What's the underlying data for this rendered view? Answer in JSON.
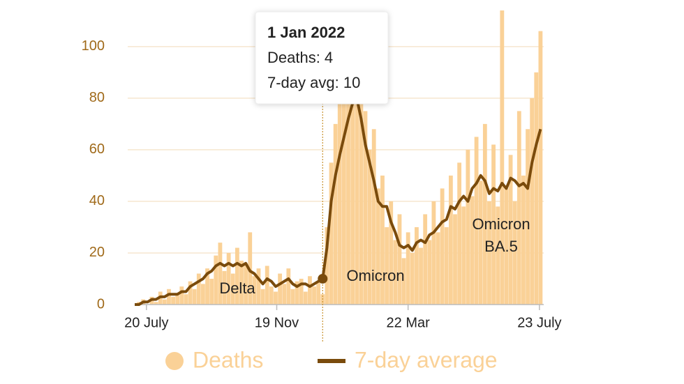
{
  "chart_data": {
    "type": "bar-line",
    "x": [
      -11,
      -7,
      -3,
      1,
      5,
      9,
      13,
      17,
      21,
      25,
      29,
      33,
      37,
      41,
      45,
      49,
      53,
      57,
      61,
      65,
      69,
      73,
      77,
      81,
      85,
      89,
      93,
      97,
      101,
      105,
      109,
      113,
      117,
      121,
      125,
      129,
      133,
      137,
      141,
      145,
      149,
      153,
      157,
      161,
      165,
      169,
      173,
      177,
      181,
      185,
      189,
      193,
      197,
      201,
      205,
      209,
      213,
      217,
      221,
      225,
      229,
      233,
      237,
      241,
      245,
      249,
      253,
      257,
      261,
      265,
      269,
      273,
      277,
      281,
      285,
      289,
      293,
      297,
      301,
      305,
      309,
      313,
      317,
      321,
      325,
      329,
      333,
      337,
      341,
      345,
      349,
      353,
      357,
      361,
      365,
      369
    ],
    "xlim": [
      -11,
      372
    ],
    "xticks": [
      {
        "value": 0,
        "label": "20 July"
      },
      {
        "value": 122,
        "label": "19 Nov"
      },
      {
        "value": 245,
        "label": "22 Mar"
      },
      {
        "value": 368,
        "label": "23 July"
      }
    ],
    "ylim": [
      0,
      114
    ],
    "yticks": [
      0,
      20,
      40,
      60,
      80,
      100
    ],
    "grid": true,
    "series": [
      {
        "name": "Deaths",
        "color": "#fad197",
        "values": [
          0,
          1,
          2,
          0,
          3,
          1,
          5,
          2,
          6,
          3,
          4,
          7,
          4,
          9,
          6,
          12,
          8,
          14,
          10,
          19,
          24,
          13,
          20,
          12,
          22,
          17,
          16,
          28,
          11,
          14,
          6,
          15,
          7,
          5,
          12,
          8,
          14,
          6,
          9,
          10,
          5,
          11,
          7,
          9,
          4,
          30,
          55,
          70,
          95,
          80,
          100,
          85,
          110,
          90,
          75,
          60,
          68,
          45,
          50,
          30,
          40,
          25,
          35,
          18,
          28,
          20,
          30,
          22,
          35,
          25,
          40,
          28,
          45,
          30,
          50,
          35,
          55,
          38,
          60,
          42,
          65,
          48,
          70,
          40,
          62,
          38,
          114,
          45,
          58,
          40,
          75,
          50,
          68,
          80,
          90,
          106
        ]
      },
      {
        "name": "7-day average",
        "color": "#7a4b0c",
        "values": [
          0,
          0,
          1,
          1,
          2,
          2,
          3,
          3,
          4,
          4,
          4,
          5,
          5,
          7,
          8,
          9,
          10,
          12,
          13,
          15,
          16,
          15,
          16,
          15,
          16,
          15,
          16,
          13,
          12,
          10,
          8,
          10,
          9,
          7,
          8,
          9,
          10,
          8,
          7,
          8,
          8,
          7,
          8,
          9,
          10,
          22,
          40,
          50,
          58,
          65,
          72,
          78,
          80,
          72,
          62,
          55,
          48,
          40,
          38,
          38,
          32,
          28,
          23,
          22,
          23,
          21,
          24,
          25,
          24,
          27,
          28,
          30,
          32,
          33,
          38,
          37,
          40,
          42,
          40,
          45,
          47,
          50,
          48,
          43,
          45,
          44,
          47,
          45,
          49,
          48,
          46,
          47,
          45,
          55,
          62,
          68
        ]
      }
    ],
    "annotations": [
      {
        "lines": [
          "Delta"
        ]
      },
      {
        "lines": [
          "Omicron"
        ]
      },
      {
        "lines": [
          "Omicron",
          "BA.5"
        ]
      }
    ],
    "tooltip": {
      "title": "1 Jan 2022",
      "lines": [
        "Deaths: 4",
        "7-day avg: 10"
      ]
    }
  }
}
